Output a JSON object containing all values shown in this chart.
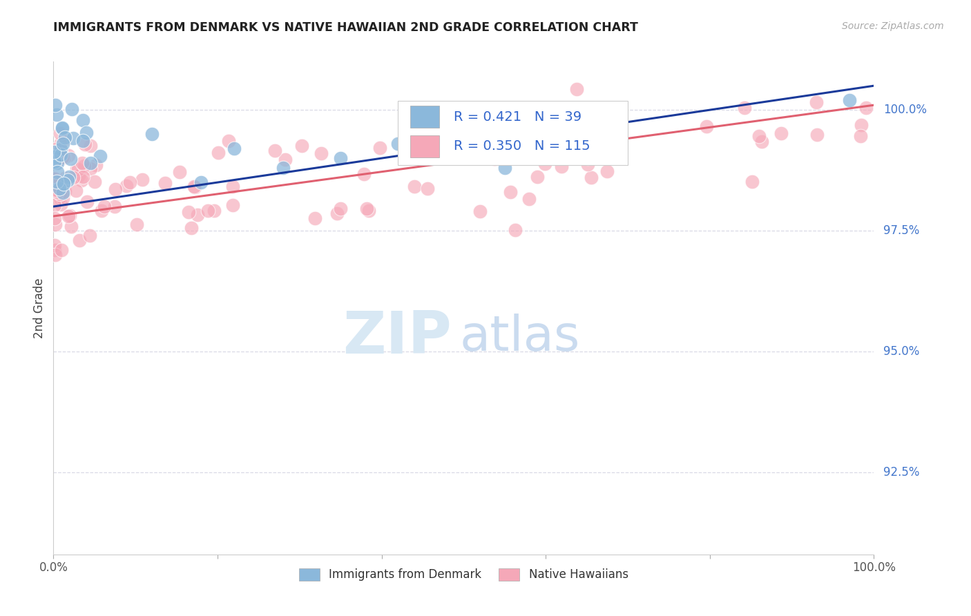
{
  "title": "IMMIGRANTS FROM DENMARK VS NATIVE HAWAIIAN 2ND GRADE CORRELATION CHART",
  "source_text": "Source: ZipAtlas.com",
  "ylabel": "2nd Grade",
  "y_tick_labels": [
    "92.5%",
    "95.0%",
    "97.5%",
    "100.0%"
  ],
  "y_tick_values": [
    92.5,
    95.0,
    97.5,
    100.0
  ],
  "ylim": [
    90.8,
    101.0
  ],
  "xlim": [
    0.0,
    100.0
  ],
  "legend_label1": "Immigrants from Denmark",
  "legend_label2": "Native Hawaiians",
  "legend_R1_val": "0.421",
  "legend_N1_val": "39",
  "legend_R2_val": "0.350",
  "legend_N2_val": "115",
  "color_blue": "#8bb8db",
  "color_pink": "#f5a8b8",
  "color_blue_line": "#1a3a9a",
  "color_pink_line": "#e06070",
  "color_legend_text": "#3366cc",
  "watermark_zip_color": "#d8e8f4",
  "watermark_atlas_color": "#c5d8ee",
  "grid_color": "#d0d0e0",
  "title_color": "#222222",
  "source_color": "#aaaaaa",
  "ylabel_color": "#444444",
  "ytick_label_color": "#4477cc",
  "xtick_label_color": "#555555",
  "blue_line_start_y": 98.0,
  "blue_line_end_y": 100.5,
  "pink_line_start_y": 97.8,
  "pink_line_end_y": 100.1
}
